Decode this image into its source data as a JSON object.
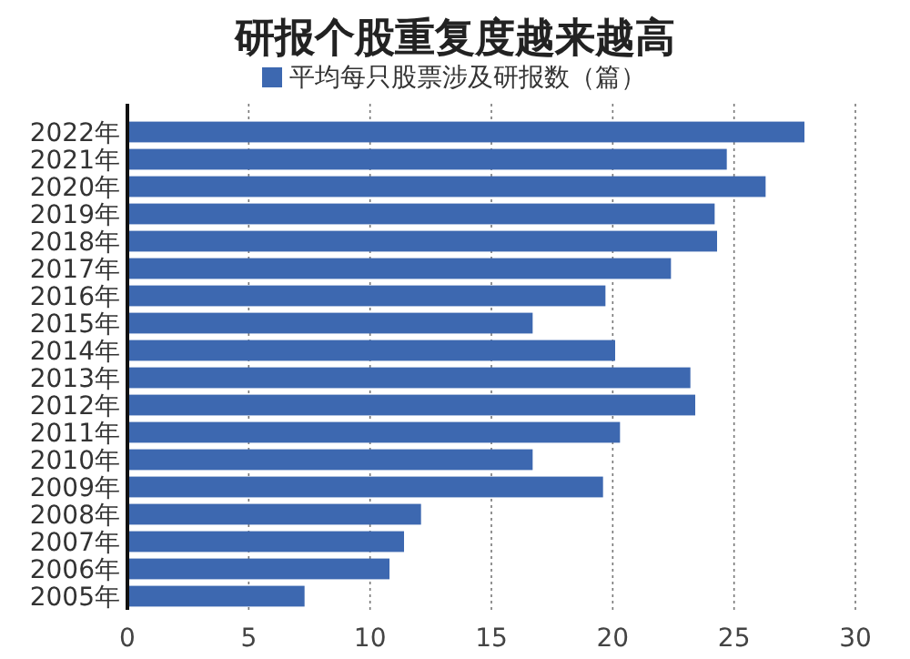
{
  "chart_data": {
    "type": "bar",
    "orientation": "horizontal",
    "title": "研报个股重复度越来越高",
    "categories": [
      "2022年",
      "2021年",
      "2020年",
      "2019年",
      "2018年",
      "2017年",
      "2016年",
      "2015年",
      "2014年",
      "2013年",
      "2012年",
      "2011年",
      "2010年",
      "2009年",
      "2008年",
      "2007年",
      "2006年",
      "2005年"
    ],
    "series": [
      {
        "name": "平均每只股票涉及研报数（篇）",
        "color": "#3d68b0",
        "values": [
          27.9,
          24.7,
          26.3,
          24.2,
          24.3,
          22.4,
          19.7,
          16.7,
          20.1,
          23.2,
          23.4,
          20.3,
          16.7,
          19.6,
          12.1,
          11.4,
          10.8,
          7.3
        ]
      }
    ],
    "xlim": [
      0,
      30
    ],
    "xticks": [
      0,
      5,
      10,
      15,
      20,
      25,
      30
    ],
    "grid": "x",
    "legend": "top"
  }
}
